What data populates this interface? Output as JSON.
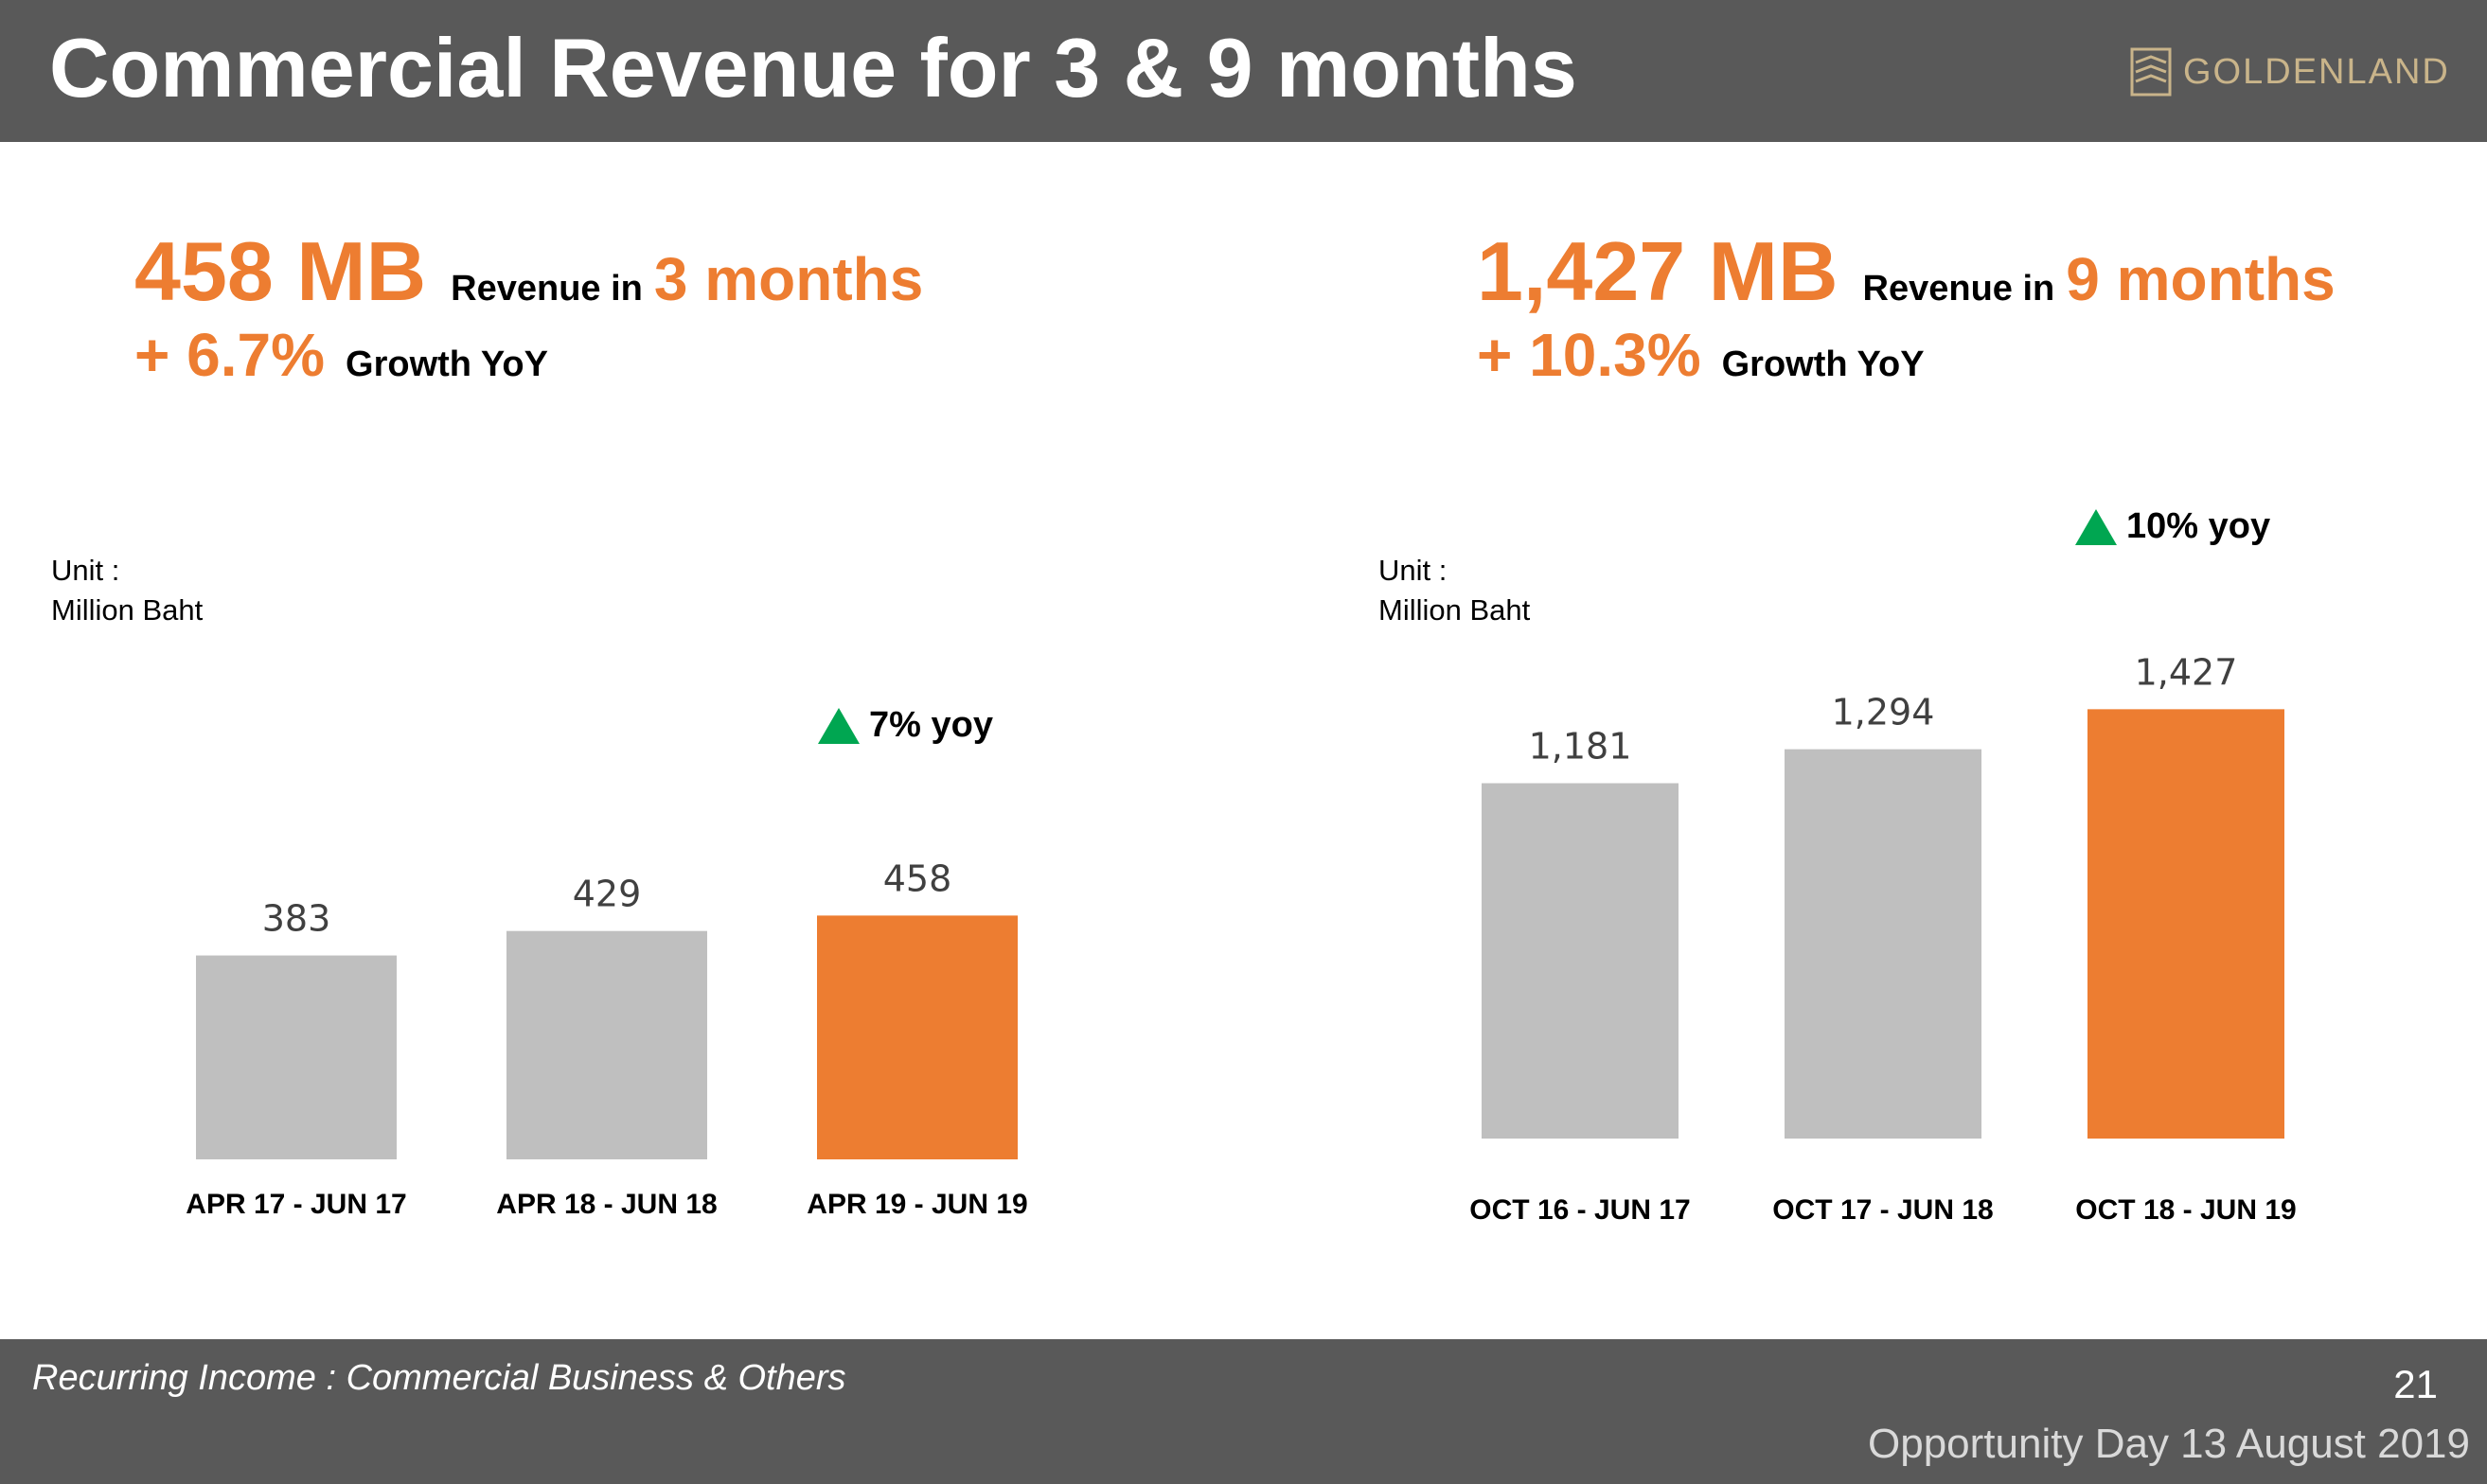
{
  "header": {
    "title": "Commercial Revenue for 3 & 9 months",
    "logo_text": "GOLDENLAND"
  },
  "kpi_left": {
    "value": "458 MB",
    "label": "Revenue in",
    "period": "3 months",
    "growth": "+ 6.7%",
    "growth_label": "Growth YoY"
  },
  "kpi_right": {
    "value": "1,427 MB",
    "label": "Revenue in",
    "period": "9 months",
    "growth": "+ 10.3%",
    "growth_label": "Growth YoY"
  },
  "unit_left": {
    "line1": "Unit :",
    "line2": "Million Baht"
  },
  "unit_right": {
    "line1": "Unit :",
    "line2": "Million Baht"
  },
  "yoy_left": "7% yoy",
  "yoy_right": "10% yoy",
  "colors": {
    "gray_bar": "#bfbfbf",
    "highlight_bar": "#ed7d31",
    "up_arrow": "#00a651",
    "header_bg": "#595959"
  },
  "chart_data": [
    {
      "type": "bar",
      "categories": [
        "APR 17 - JUN 17",
        "APR 18 - JUN 18",
        "APR 19 - JUN 19"
      ],
      "values": [
        383,
        429,
        458
      ],
      "value_labels": [
        "383",
        "429",
        "458"
      ],
      "highlight_index": 2,
      "ylim": [
        0,
        500
      ],
      "grid": false
    },
    {
      "type": "bar",
      "categories": [
        "OCT 16 - JUN 17",
        "OCT 17 - JUN 18",
        "OCT 18 - JUN 19"
      ],
      "values": [
        1181,
        1294,
        1427
      ],
      "value_labels": [
        "1,181",
        "1,294",
        "1,427"
      ],
      "highlight_index": 2,
      "ylim": [
        0,
        1500
      ],
      "grid": false
    }
  ],
  "footer": {
    "left": "Recurring Income : Commercial Business & Others",
    "page": "21",
    "right": "Opportunity Day 13 August 2019"
  }
}
